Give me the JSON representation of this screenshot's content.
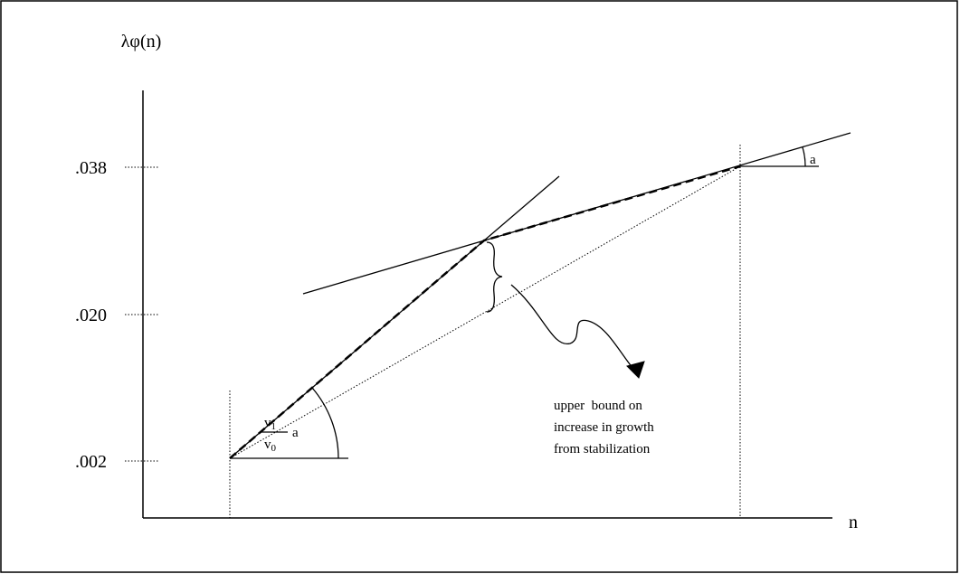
{
  "axes": {
    "y_label": "λφ(n)",
    "x_label": "n",
    "y_ticks": [
      ".038",
      ".020",
      ".002"
    ]
  },
  "annotations": {
    "angle_right": "a",
    "ratio_numerator": "v",
    "ratio_numerator_sub": "1",
    "ratio_denominator": "v",
    "ratio_denominator_sub": "0",
    "angle_left": "a"
  },
  "note": {
    "lines": [
      "upper  bound on",
      "increase in growth",
      "from stabilization"
    ]
  }
}
